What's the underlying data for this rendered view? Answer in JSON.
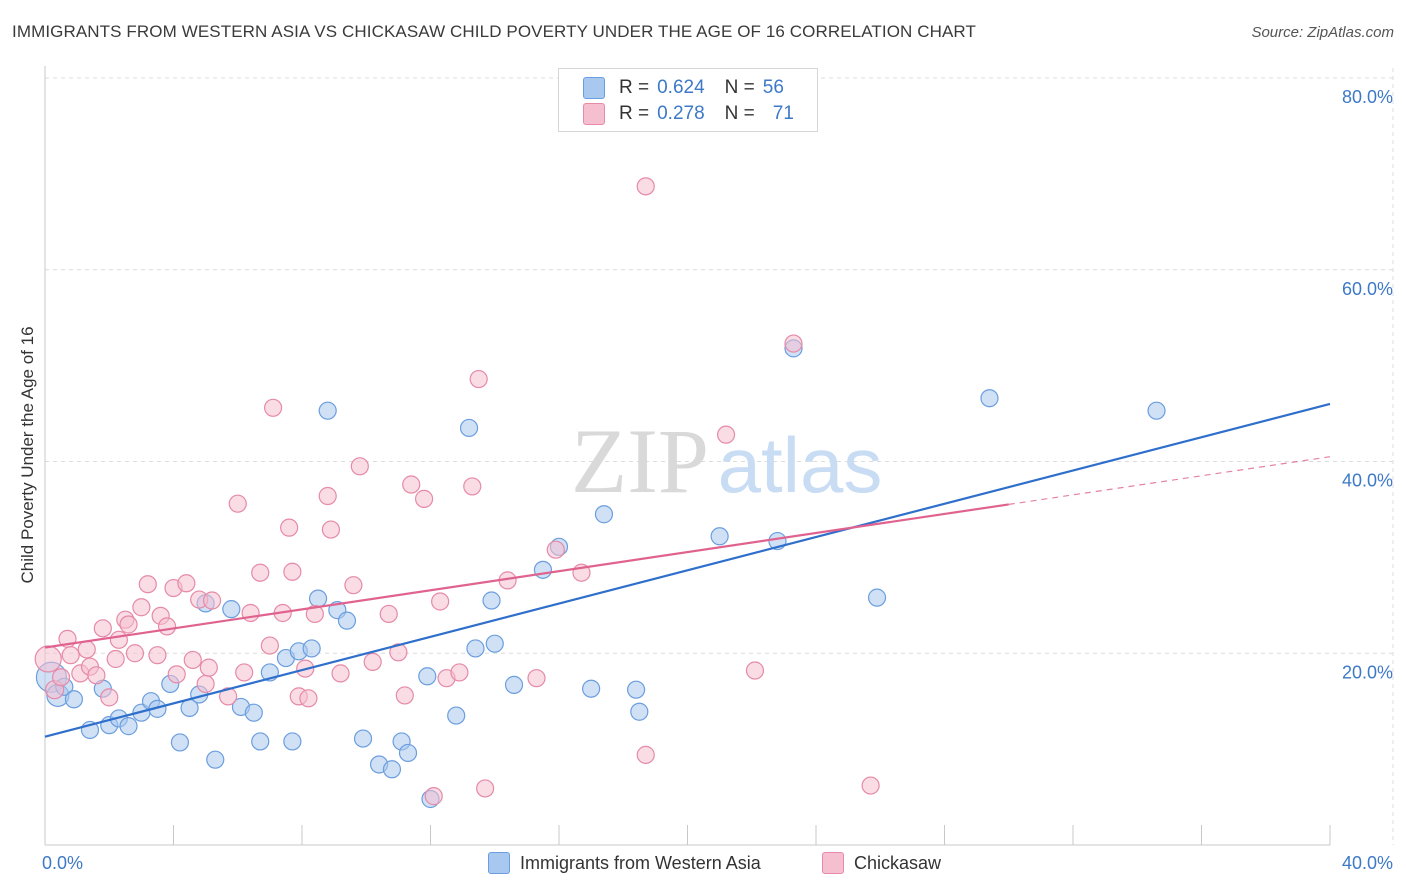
{
  "title": "IMMIGRANTS FROM WESTERN ASIA VS CHICKASAW CHILD POVERTY UNDER THE AGE OF 16 CORRELATION CHART",
  "source": "Source: ZipAtlas.com",
  "watermark": {
    "zip": "ZIP",
    "atlas": "atlas"
  },
  "legend": {
    "rows": [
      {
        "r_label": "R = ",
        "r_value": "0.624",
        "n_label": "N = ",
        "n_value": "56"
      },
      {
        "r_label": "R = ",
        "r_value": "0.278",
        "n_label": "N = ",
        "n_value": "71"
      }
    ]
  },
  "colors": {
    "blue_fill": "#a9c8ef",
    "blue_stroke": "#6b9ede",
    "blue_line": "#2f6fcc",
    "pink_fill": "#f5bfd0",
    "pink_stroke": "#e58aa8",
    "pink_line": "#e0628f",
    "accent_text": "#3d79c7",
    "grid": "#dcdcdc"
  },
  "chart_data": {
    "type": "scatter",
    "title": "IMMIGRANTS FROM WESTERN ASIA VS CHICKASAW CHILD POVERTY UNDER THE AGE OF 16 CORRELATION CHART",
    "xlabel": "",
    "ylabel": "Child Poverty Under the Age of 16",
    "xlim": [
      0,
      40
    ],
    "ylim": [
      0,
      80
    ],
    "x_tick_labels": [
      "0.0%",
      "40.0%"
    ],
    "y_ticks": [
      20,
      40,
      60,
      80
    ],
    "y_tick_labels": [
      "20.0%",
      "40.0%",
      "60.0%",
      "80.0%"
    ],
    "grid": true,
    "series": [
      {
        "name": "Immigrants from Western Asia",
        "color": "blue",
        "r": 0.624,
        "n": 56,
        "trend": {
          "x": [
            0,
            40
          ],
          "y": [
            11.3,
            46.0
          ],
          "dashed_from": null
        },
        "points": [
          [
            0.2,
            17.5
          ],
          [
            0.4,
            15.6
          ],
          [
            0.6,
            16.5
          ],
          [
            0.9,
            15.2
          ],
          [
            1.4,
            12.0
          ],
          [
            1.8,
            16.3
          ],
          [
            2.0,
            12.5
          ],
          [
            2.3,
            13.2
          ],
          [
            2.6,
            12.4
          ],
          [
            3.0,
            13.8
          ],
          [
            3.3,
            15.0
          ],
          [
            3.5,
            14.2
          ],
          [
            3.9,
            16.8
          ],
          [
            4.2,
            10.7
          ],
          [
            4.5,
            14.3
          ],
          [
            4.8,
            15.7
          ],
          [
            5.0,
            25.2
          ],
          [
            5.3,
            8.9
          ],
          [
            5.8,
            24.6
          ],
          [
            6.1,
            14.4
          ],
          [
            6.5,
            13.8
          ],
          [
            6.7,
            10.8
          ],
          [
            7.0,
            18.0
          ],
          [
            7.5,
            19.5
          ],
          [
            7.7,
            10.8
          ],
          [
            7.9,
            20.2
          ],
          [
            8.3,
            20.5
          ],
          [
            8.5,
            25.7
          ],
          [
            8.8,
            45.3
          ],
          [
            9.1,
            24.5
          ],
          [
            9.4,
            23.4
          ],
          [
            9.9,
            11.1
          ],
          [
            10.4,
            8.4
          ],
          [
            10.8,
            7.9
          ],
          [
            11.1,
            10.8
          ],
          [
            11.3,
            9.6
          ],
          [
            11.9,
            17.6
          ],
          [
            12.0,
            4.8
          ],
          [
            12.8,
            13.5
          ],
          [
            13.2,
            43.5
          ],
          [
            13.4,
            20.5
          ],
          [
            13.9,
            25.5
          ],
          [
            14.0,
            21.0
          ],
          [
            14.6,
            16.7
          ],
          [
            15.5,
            28.7
          ],
          [
            16.0,
            31.1
          ],
          [
            17.0,
            16.3
          ],
          [
            17.4,
            34.5
          ],
          [
            18.4,
            16.2
          ],
          [
            18.5,
            13.9
          ],
          [
            21.0,
            32.2
          ],
          [
            22.8,
            31.7
          ],
          [
            23.3,
            51.8
          ],
          [
            25.9,
            25.8
          ],
          [
            29.4,
            46.6
          ],
          [
            34.6,
            45.3
          ]
        ]
      },
      {
        "name": "Chickasaw",
        "color": "pink",
        "r": 0.278,
        "n": 71,
        "trend": {
          "x": [
            0,
            40
          ],
          "y": [
            20.6,
            40.5
          ],
          "dashed_from": 30
        },
        "points": [
          [
            0.1,
            19.4
          ],
          [
            0.3,
            16.2
          ],
          [
            0.5,
            17.5
          ],
          [
            0.7,
            21.5
          ],
          [
            0.8,
            19.8
          ],
          [
            1.1,
            17.9
          ],
          [
            1.3,
            20.4
          ],
          [
            1.4,
            18.6
          ],
          [
            1.6,
            17.7
          ],
          [
            1.8,
            22.6
          ],
          [
            2.0,
            15.4
          ],
          [
            2.2,
            19.4
          ],
          [
            2.3,
            21.4
          ],
          [
            2.5,
            23.5
          ],
          [
            2.6,
            23.0
          ],
          [
            2.8,
            20.0
          ],
          [
            3.0,
            24.8
          ],
          [
            3.2,
            27.2
          ],
          [
            3.5,
            19.8
          ],
          [
            3.6,
            23.9
          ],
          [
            3.8,
            22.8
          ],
          [
            4.0,
            26.8
          ],
          [
            4.1,
            17.8
          ],
          [
            4.4,
            27.3
          ],
          [
            4.6,
            19.3
          ],
          [
            4.8,
            25.6
          ],
          [
            5.0,
            16.8
          ],
          [
            5.1,
            18.5
          ],
          [
            5.2,
            25.5
          ],
          [
            5.7,
            15.5
          ],
          [
            6.0,
            35.6
          ],
          [
            6.2,
            18.0
          ],
          [
            6.4,
            24.2
          ],
          [
            6.7,
            28.4
          ],
          [
            7.0,
            20.8
          ],
          [
            7.1,
            45.6
          ],
          [
            7.4,
            24.2
          ],
          [
            7.6,
            33.1
          ],
          [
            7.7,
            28.5
          ],
          [
            7.9,
            15.5
          ],
          [
            8.1,
            18.4
          ],
          [
            8.2,
            15.3
          ],
          [
            8.4,
            24.1
          ],
          [
            8.8,
            36.4
          ],
          [
            8.9,
            32.9
          ],
          [
            9.2,
            17.9
          ],
          [
            9.6,
            27.1
          ],
          [
            9.8,
            39.5
          ],
          [
            10.2,
            19.1
          ],
          [
            10.7,
            24.1
          ],
          [
            11.0,
            20.1
          ],
          [
            11.2,
            15.6
          ],
          [
            11.4,
            37.6
          ],
          [
            11.8,
            36.1
          ],
          [
            12.1,
            5.1
          ],
          [
            12.3,
            25.4
          ],
          [
            12.5,
            17.4
          ],
          [
            12.9,
            18.0
          ],
          [
            13.3,
            37.4
          ],
          [
            13.5,
            48.6
          ],
          [
            13.7,
            5.9
          ],
          [
            14.4,
            27.6
          ],
          [
            15.3,
            17.4
          ],
          [
            15.9,
            30.8
          ],
          [
            16.7,
            28.4
          ],
          [
            18.7,
            68.7
          ],
          [
            18.7,
            9.4
          ],
          [
            21.2,
            42.8
          ],
          [
            22.1,
            18.2
          ],
          [
            23.3,
            52.3
          ],
          [
            25.7,
            6.2
          ]
        ]
      }
    ]
  },
  "bottom_legend": [
    {
      "label": "Immigrants from Western Asia"
    },
    {
      "label": "Chickasaw"
    }
  ]
}
